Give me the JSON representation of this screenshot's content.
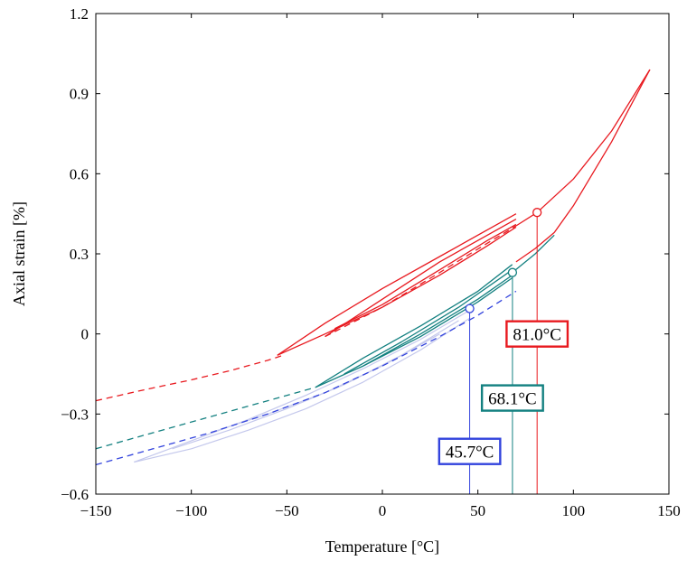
{
  "chart_data": {
    "type": "line",
    "xlabel": "Temperature [°C]",
    "ylabel": "Axial strain [%]",
    "xlim": [
      -150,
      150
    ],
    "ylim": [
      -0.6,
      1.2
    ],
    "xticks": [
      -150,
      -100,
      -50,
      0,
      50,
      100,
      150
    ],
    "yticks": [
      -0.6,
      -0.3,
      0,
      0.3,
      0.6,
      0.9,
      1.2
    ],
    "xtick_labels": [
      "−150",
      "−100",
      "−50",
      "0",
      "50",
      "100",
      "150"
    ],
    "ytick_labels": [
      "−0.6",
      "−0.3",
      "0",
      "0.3",
      "0.6",
      "0.9",
      "1.2"
    ],
    "grid": false,
    "colors": {
      "red": "#e8191f",
      "teal": "#138080",
      "blue": "#3344dd",
      "lightblue": "#c4c8ec",
      "darkteal": "#1f5f5f"
    },
    "series": [
      {
        "color": "red",
        "dashed": true,
        "x": [
          -150,
          -125,
          -100,
          -80,
          -60,
          -52
        ],
        "y": [
          -0.25,
          -0.21,
          -0.172,
          -0.138,
          -0.099,
          -0.08
        ]
      },
      {
        "color": "red",
        "dashed": false,
        "x": [
          -55,
          -30,
          0,
          30,
          55,
          70
        ],
        "y": [
          -0.08,
          0.04,
          0.17,
          0.29,
          0.39,
          0.45
        ]
      },
      {
        "color": "red",
        "dashed": false,
        "x": [
          -55,
          -30,
          0,
          30,
          55,
          70
        ],
        "y": [
          -0.08,
          0.0,
          0.1,
          0.22,
          0.33,
          0.4
        ]
      },
      {
        "color": "red",
        "dashed": false,
        "x": [
          -30,
          0,
          30,
          55,
          70
        ],
        "y": [
          -0.01,
          0.13,
          0.27,
          0.37,
          0.43
        ]
      },
      {
        "color": "red",
        "dashed": false,
        "x": [
          -25,
          0,
          30,
          55,
          70
        ],
        "y": [
          0.02,
          0.11,
          0.24,
          0.35,
          0.41
        ]
      },
      {
        "color": "red",
        "dashed": true,
        "x": [
          -30,
          0,
          30,
          55,
          70
        ],
        "y": [
          -0.01,
          0.1,
          0.23,
          0.34,
          0.405
        ]
      },
      {
        "color": "red",
        "dashed": false,
        "x": [
          70,
          81,
          100,
          120,
          140
        ],
        "y": [
          0.405,
          0.455,
          0.58,
          0.76,
          0.99
        ]
      },
      {
        "color": "red",
        "dashed": false,
        "x": [
          140,
          120,
          100,
          90,
          80,
          70
        ],
        "y": [
          0.99,
          0.72,
          0.48,
          0.38,
          0.32,
          0.27
        ]
      },
      {
        "color": "teal",
        "dashed": true,
        "x": [
          -150,
          -120,
          -90,
          -60,
          -35
        ],
        "y": [
          -0.43,
          -0.37,
          -0.31,
          -0.25,
          -0.2
        ]
      },
      {
        "color": "teal",
        "dashed": false,
        "x": [
          -35,
          -10,
          20,
          50,
          68
        ],
        "y": [
          -0.2,
          -0.09,
          0.03,
          0.16,
          0.26
        ]
      },
      {
        "color": "teal",
        "dashed": false,
        "x": [
          -35,
          -10,
          20,
          50,
          68
        ],
        "y": [
          -0.2,
          -0.12,
          -0.01,
          0.12,
          0.21
        ]
      },
      {
        "color": "teal",
        "dashed": false,
        "x": [
          -20,
          10,
          40,
          68
        ],
        "y": [
          -0.15,
          -0.03,
          0.1,
          0.24
        ]
      },
      {
        "color": "teal",
        "dashed": false,
        "x": [
          -10,
          20,
          50,
          68
        ],
        "y": [
          -0.12,
          0.0,
          0.13,
          0.22
        ]
      },
      {
        "color": "teal",
        "dashed": false,
        "x": [
          68,
          80,
          90
        ],
        "y": [
          0.23,
          0.3,
          0.37
        ]
      },
      {
        "color": "lightblue",
        "dashed": false,
        "x": [
          -130,
          -100,
          -70,
          -40,
          -10,
          20,
          46
        ],
        "y": [
          -0.48,
          -0.4,
          -0.32,
          -0.23,
          -0.13,
          -0.02,
          0.09
        ]
      },
      {
        "color": "lightblue",
        "dashed": false,
        "x": [
          -130,
          -100,
          -70,
          -40,
          -10,
          20,
          46
        ],
        "y": [
          -0.48,
          -0.43,
          -0.36,
          -0.28,
          -0.18,
          -0.06,
          0.06
        ]
      },
      {
        "color": "lightblue",
        "dashed": false,
        "x": [
          -110,
          -80,
          -50,
          -20,
          10,
          40
        ],
        "y": [
          -0.43,
          -0.36,
          -0.28,
          -0.19,
          -0.08,
          0.05
        ]
      },
      {
        "color": "lightblue",
        "dashed": false,
        "x": [
          -90,
          -60,
          -30,
          0,
          30
        ],
        "y": [
          -0.37,
          -0.3,
          -0.22,
          -0.12,
          0.0
        ]
      },
      {
        "color": "blue",
        "dashed": true,
        "x": [
          -150,
          -120,
          -90,
          -60,
          -30,
          0,
          30,
          50,
          70
        ],
        "y": [
          -0.49,
          -0.43,
          -0.37,
          -0.3,
          -0.22,
          -0.12,
          -0.01,
          0.07,
          0.16
        ]
      }
    ],
    "markers": [
      {
        "x": 81.0,
        "y": 0.455,
        "color": "red"
      },
      {
        "x": 68.1,
        "y": 0.23,
        "color": "teal"
      },
      {
        "x": 45.7,
        "y": 0.095,
        "color": "blue"
      }
    ],
    "annotations": [
      {
        "text": "81.0°C",
        "x": 81.0,
        "label_y": 0.0,
        "color": "red"
      },
      {
        "text": "68.1°C",
        "x": 68.1,
        "label_y": -0.24,
        "color": "teal"
      },
      {
        "text": "45.7°C",
        "x": 45.7,
        "label_y": -0.44,
        "color": "blue"
      }
    ]
  }
}
